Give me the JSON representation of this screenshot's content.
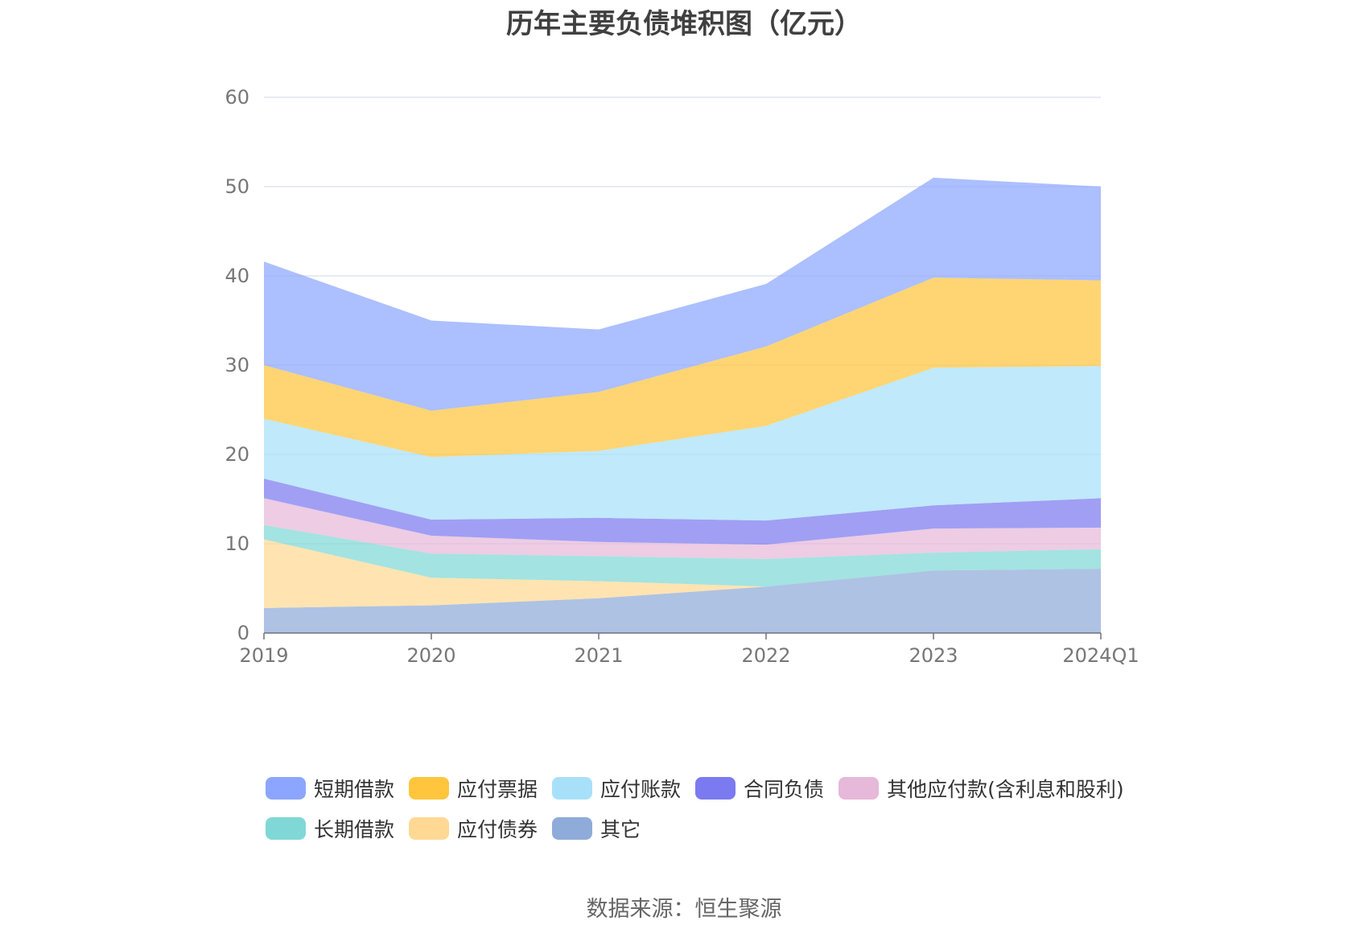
{
  "chart_data": {
    "type": "area",
    "stacked": true,
    "title": "历年主要负债堆积图（亿元）",
    "categories": [
      "2019",
      "2020",
      "2021",
      "2022",
      "2023",
      "2024Q1"
    ],
    "ylim": [
      0,
      60
    ],
    "yticks": [
      0,
      10,
      20,
      30,
      40,
      50,
      60
    ],
    "grid": true,
    "legend_position": "bottom",
    "series": [
      {
        "name": "其它",
        "color": "#8fabd9",
        "values": [
          2.8,
          3.1,
          3.9,
          5.2,
          7.0,
          7.2
        ]
      },
      {
        "name": "应付债券",
        "color": "#ffd993",
        "values": [
          7.7,
          3.1,
          1.9,
          0.0,
          0.0,
          0.0
        ]
      },
      {
        "name": "长期借款",
        "color": "#80d8d6",
        "values": [
          1.6,
          2.7,
          2.8,
          3.1,
          2.0,
          2.2
        ]
      },
      {
        "name": "其他应付款(含利息和股利)",
        "color": "#e6b8d9",
        "values": [
          3.0,
          2.0,
          1.6,
          1.6,
          2.7,
          2.4
        ]
      },
      {
        "name": "合同负债",
        "color": "#7b7af0",
        "values": [
          2.2,
          1.8,
          2.7,
          2.7,
          2.6,
          3.3
        ]
      },
      {
        "name": "应付账款",
        "color": "#a8e0fa",
        "values": [
          6.7,
          7.0,
          7.5,
          10.6,
          15.4,
          14.8
        ]
      },
      {
        "name": "应付票据",
        "color": "#ffc53d",
        "values": [
          6.0,
          5.2,
          6.6,
          8.9,
          10.1,
          9.6
        ]
      },
      {
        "name": "短期借款",
        "color": "#8ca6ff",
        "values": [
          11.6,
          10.1,
          7.0,
          7.0,
          11.2,
          10.5
        ]
      }
    ]
  },
  "legend": {
    "row1": [
      {
        "label": "短期借款",
        "color": "#8ca6ff"
      },
      {
        "label": "应付票据",
        "color": "#ffc53d"
      },
      {
        "label": "应付账款",
        "color": "#a8e0fa"
      },
      {
        "label": "合同负债",
        "color": "#7b7af0"
      },
      {
        "label": "其他应付款(含利息和股利)",
        "color": "#e6b8d9"
      }
    ],
    "row2": [
      {
        "label": "长期借款",
        "color": "#80d8d6"
      },
      {
        "label": "应付债券",
        "color": "#ffd993"
      },
      {
        "label": "其它",
        "color": "#8fabd9"
      }
    ]
  },
  "source": "数据来源：恒生聚源"
}
